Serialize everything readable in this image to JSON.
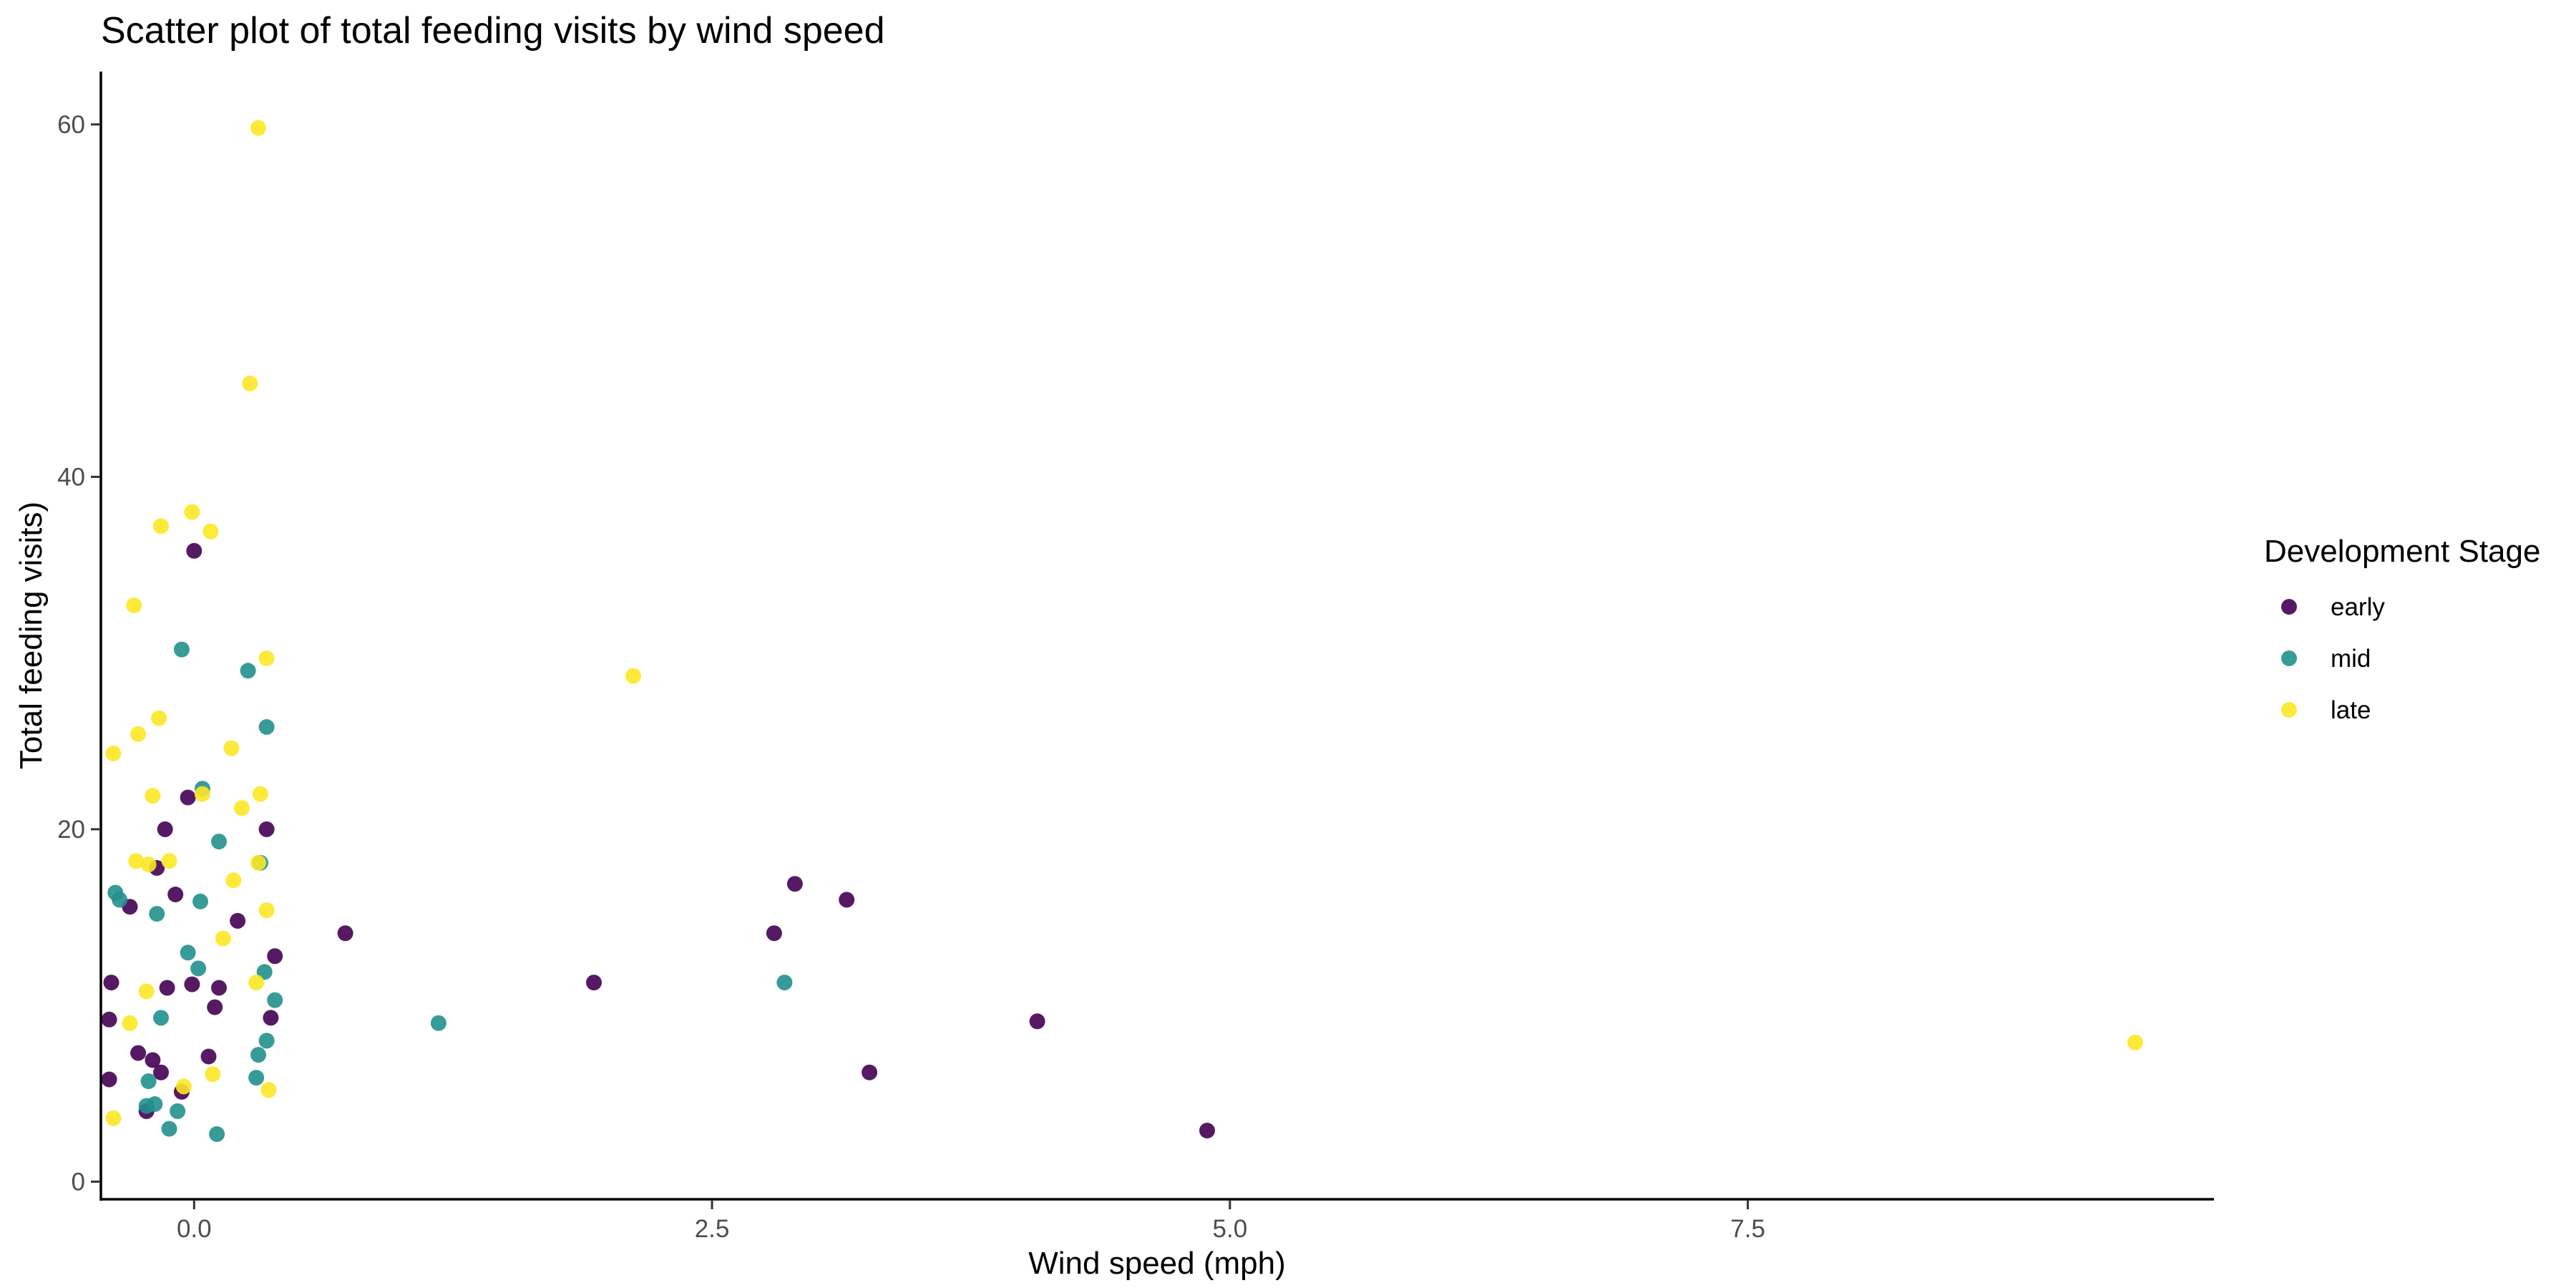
{
  "chart_data": {
    "type": "scatter",
    "title": "Scatter plot of total feeding visits by wind speed",
    "xlabel": "Wind speed (mph)",
    "ylabel": "Total feeding visits)",
    "xlim": [
      -0.45,
      9.75
    ],
    "ylim": [
      -1,
      63
    ],
    "x_ticks": [
      0,
      2.5,
      5,
      7.5
    ],
    "x_tick_labels": [
      "0.0",
      "2.5",
      "5.0",
      "7.5"
    ],
    "y_ticks": [
      0,
      20,
      40,
      60
    ],
    "y_tick_labels": [
      "0",
      "20",
      "40",
      "60"
    ],
    "grid": false,
    "legend": {
      "title": "Development Stage",
      "position": "right"
    },
    "series": [
      {
        "name": "early",
        "color": "#440154",
        "points": [
          {
            "x": -0.4,
            "y": 11.3
          },
          {
            "x": -0.41,
            "y": 9.2
          },
          {
            "x": -0.41,
            "y": 5.8
          },
          {
            "x": -0.31,
            "y": 15.6
          },
          {
            "x": -0.27,
            "y": 7.3
          },
          {
            "x": -0.23,
            "y": 4.0
          },
          {
            "x": -0.2,
            "y": 6.9
          },
          {
            "x": -0.18,
            "y": 17.8
          },
          {
            "x": -0.16,
            "y": 6.2
          },
          {
            "x": -0.14,
            "y": 20.0
          },
          {
            "x": -0.13,
            "y": 11.0
          },
          {
            "x": -0.09,
            "y": 16.3
          },
          {
            "x": -0.06,
            "y": 5.1
          },
          {
            "x": -0.03,
            "y": 21.8
          },
          {
            "x": -0.01,
            "y": 11.2
          },
          {
            "x": 0.0,
            "y": 35.8
          },
          {
            "x": 0.07,
            "y": 7.1
          },
          {
            "x": 0.1,
            "y": 9.9
          },
          {
            "x": 0.12,
            "y": 11.0
          },
          {
            "x": 0.21,
            "y": 14.8
          },
          {
            "x": 0.35,
            "y": 20.0
          },
          {
            "x": 0.37,
            "y": 9.3
          },
          {
            "x": 0.39,
            "y": 12.8
          },
          {
            "x": 0.73,
            "y": 14.1
          },
          {
            "x": 1.93,
            "y": 11.3
          },
          {
            "x": 2.8,
            "y": 14.1
          },
          {
            "x": 2.9,
            "y": 16.9
          },
          {
            "x": 3.15,
            "y": 16.0
          },
          {
            "x": 3.26,
            "y": 6.2
          },
          {
            "x": 4.07,
            "y": 9.1
          },
          {
            "x": 4.89,
            "y": 2.9
          }
        ]
      },
      {
        "name": "mid",
        "color": "#21908c",
        "points": [
          {
            "x": -0.38,
            "y": 16.4
          },
          {
            "x": -0.36,
            "y": 16.0
          },
          {
            "x": -0.23,
            "y": 4.3
          },
          {
            "x": -0.22,
            "y": 5.7
          },
          {
            "x": -0.19,
            "y": 4.4
          },
          {
            "x": -0.18,
            "y": 15.2
          },
          {
            "x": -0.16,
            "y": 9.3
          },
          {
            "x": -0.12,
            "y": 3.0
          },
          {
            "x": -0.08,
            "y": 4.0
          },
          {
            "x": -0.06,
            "y": 30.2
          },
          {
            "x": -0.03,
            "y": 13.0
          },
          {
            "x": 0.02,
            "y": 12.1
          },
          {
            "x": 0.03,
            "y": 15.9
          },
          {
            "x": 0.04,
            "y": 22.3
          },
          {
            "x": 0.11,
            "y": 2.7
          },
          {
            "x": 0.12,
            "y": 19.3
          },
          {
            "x": 0.26,
            "y": 29.0
          },
          {
            "x": 0.3,
            "y": 5.9
          },
          {
            "x": 0.31,
            "y": 7.2
          },
          {
            "x": 0.32,
            "y": 18.1
          },
          {
            "x": 0.34,
            "y": 11.9
          },
          {
            "x": 0.35,
            "y": 8.0
          },
          {
            "x": 0.35,
            "y": 25.8
          },
          {
            "x": 0.39,
            "y": 10.3
          },
          {
            "x": 1.18,
            "y": 9.0
          },
          {
            "x": 2.85,
            "y": 11.3
          }
        ]
      },
      {
        "name": "late",
        "color": "#fde725",
        "points": [
          {
            "x": -0.39,
            "y": 3.6
          },
          {
            "x": -0.39,
            "y": 24.3
          },
          {
            "x": -0.31,
            "y": 9.0
          },
          {
            "x": -0.29,
            "y": 32.7
          },
          {
            "x": -0.28,
            "y": 18.2
          },
          {
            "x": -0.27,
            "y": 25.4
          },
          {
            "x": -0.23,
            "y": 10.8
          },
          {
            "x": -0.22,
            "y": 18.0
          },
          {
            "x": -0.2,
            "y": 21.9
          },
          {
            "x": -0.17,
            "y": 26.3
          },
          {
            "x": -0.16,
            "y": 37.2
          },
          {
            "x": -0.12,
            "y": 18.2
          },
          {
            "x": -0.05,
            "y": 5.4
          },
          {
            "x": -0.01,
            "y": 38.0
          },
          {
            "x": 0.04,
            "y": 22.0
          },
          {
            "x": 0.08,
            "y": 36.9
          },
          {
            "x": 0.09,
            "y": 6.1
          },
          {
            "x": 0.14,
            "y": 13.8
          },
          {
            "x": 0.18,
            "y": 24.6
          },
          {
            "x": 0.19,
            "y": 17.1
          },
          {
            "x": 0.23,
            "y": 21.2
          },
          {
            "x": 0.27,
            "y": 45.3
          },
          {
            "x": 0.3,
            "y": 11.3
          },
          {
            "x": 0.31,
            "y": 59.8
          },
          {
            "x": 0.31,
            "y": 18.1
          },
          {
            "x": 0.32,
            "y": 22.0
          },
          {
            "x": 0.35,
            "y": 29.7
          },
          {
            "x": 0.35,
            "y": 15.4
          },
          {
            "x": 0.36,
            "y": 5.2
          },
          {
            "x": 2.12,
            "y": 28.7
          },
          {
            "x": 9.37,
            "y": 7.9
          }
        ]
      }
    ]
  }
}
